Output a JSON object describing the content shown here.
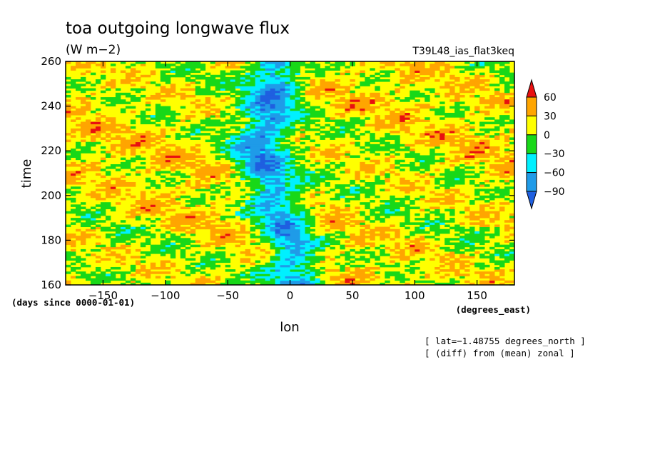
{
  "chart_data": {
    "type": "heatmap",
    "title": "toa outgoing longwave flux",
    "units": "(W m−2)",
    "run_label": "T39L48_ias_flat3keq",
    "xlabel": "lon",
    "ylabel": "time",
    "x_units": "(degrees_east)",
    "y_units": "(days since 0000-01-01)",
    "xlim": [
      -180,
      180
    ],
    "ylim": [
      160,
      260
    ],
    "x_ticks": [
      -150,
      -100,
      -50,
      0,
      50,
      100,
      150
    ],
    "y_ticks": [
      160,
      180,
      200,
      220,
      240,
      260
    ],
    "notes": [
      "[ lat=−1.48755 degrees_north ]",
      "[ (diff) from (mean) zonal ]"
    ],
    "colorbar": {
      "levels": [
        -90,
        -60,
        -30,
        0,
        30,
        60
      ],
      "colors": [
        "#1f5fe0",
        "#1f9be8",
        "#00f0ff",
        "#18d818",
        "#ffff00",
        "#ffa500",
        "#e81010"
      ]
    },
    "pattern": {
      "convective_band_center_lon": [
        [
          160,
          5
        ],
        [
          180,
          0
        ],
        [
          200,
          -15
        ],
        [
          220,
          -25
        ],
        [
          240,
          -15
        ],
        [
          260,
          -10
        ]
      ],
      "convective_band_halfwidth_deg": 20,
      "convective_band_anomaly_min": -90
    }
  }
}
